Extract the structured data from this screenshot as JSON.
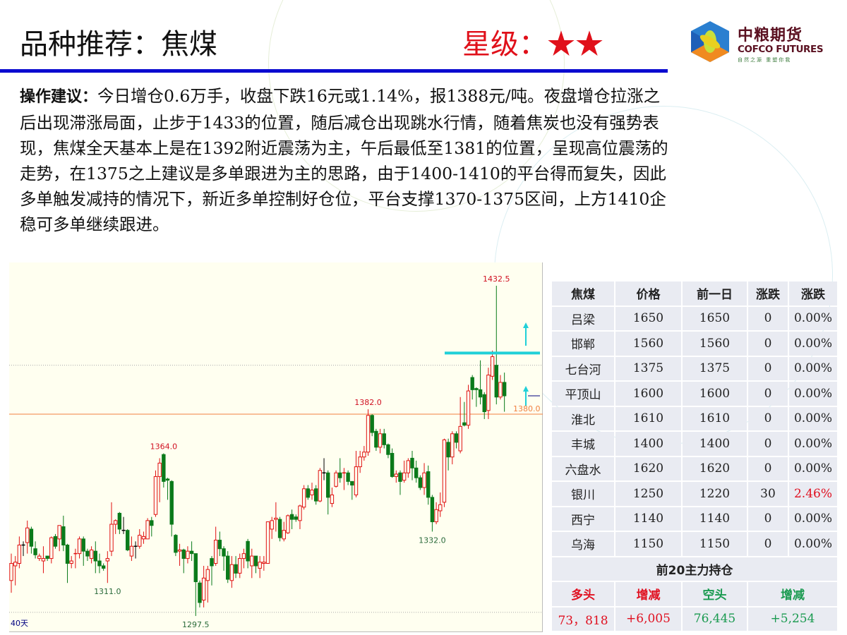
{
  "header": {
    "title": "品种推荐：焦煤",
    "rating_label": "星级：",
    "rating_stars": "★★",
    "rating_count": 2
  },
  "logo": {
    "cn": "中粮期货",
    "en": "COFCO FUTURES",
    "slogan": "自然之源 重塑你我"
  },
  "advice": {
    "label": "操作建议：",
    "lines": [
      "今日增仓0.6万手，收盘下跌16元或1.14%，报1388元/吨。夜盘增仓拉涨之",
      "后出现滞涨局面，止步于1433的位置，随后减仓出现跳水行情，随着焦炭也没有强势表",
      "现，焦煤全天基本上是在1392附近震荡为主，午后最低至1381的位置，呈现高位震荡的",
      "走势，在1375之上建议是多单跟进为主的思路，由于1400-1410的平台得而复失，因此",
      "多单触发减持的情况下，新近多单控制好仓位，平台支撑1370-1375区间，上方1410企",
      "稳可多单继续跟进。"
    ]
  },
  "chart_data": {
    "type": "candlestick",
    "period_label": "40天",
    "ylim": [
      1293,
      1445
    ],
    "colors": {
      "up": "#e01010",
      "down": "#0a7a1a",
      "bg": "#fffff0",
      "support": "#f08040",
      "resistance": "#20d0d8"
    },
    "candles": [
      [
        1312,
        1323,
        1307,
        1319
      ],
      [
        1318,
        1322,
        1310,
        1319.5
      ],
      [
        1319,
        1330,
        1317,
        1326.5
      ],
      [
        1326.5,
        1328,
        1322,
        1326.5
      ],
      [
        1327.5,
        1336.5,
        1323,
        1333.5
      ],
      [
        1333,
        1334,
        1323,
        1326
      ],
      [
        1325,
        1328,
        1321,
        1322.5
      ],
      [
        1321,
        1323,
        1320,
        1322
      ],
      [
        1320,
        1326,
        1315,
        1321
      ],
      [
        1322,
        1322,
        1320,
        1321
      ],
      [
        1321,
        1330,
        1319,
        1329.5
      ],
      [
        1330,
        1331,
        1325,
        1326
      ],
      [
        1329,
        1334.5,
        1324,
        1334.5
      ],
      [
        1334,
        1338.5,
        1324,
        1326.5
      ],
      [
        1326.5,
        1327,
        1311,
        1319
      ],
      [
        1319,
        1322,
        1317,
        1320
      ],
      [
        1323,
        1325,
        1317,
        1323
      ],
      [
        1323,
        1330,
        1321,
        1329
      ],
      [
        1329,
        1330,
        1318,
        1324
      ],
      [
        1324,
        1325,
        1320,
        1322
      ],
      [
        1321,
        1326,
        1319,
        1324.5
      ],
      [
        1324,
        1328,
        1315,
        1320
      ],
      [
        1320,
        1323,
        1315,
        1318
      ],
      [
        1318,
        1319,
        1316,
        1317
      ],
      [
        1320,
        1324,
        1311,
        1321
      ],
      [
        1324,
        1344,
        1322,
        1335
      ],
      [
        1335,
        1337,
        1331,
        1336.5
      ],
      [
        1339.5,
        1340,
        1331,
        1333
      ],
      [
        1332.5,
        1338,
        1331,
        1332.5
      ],
      [
        1332.5,
        1333,
        1324,
        1324.5
      ],
      [
        1322,
        1330,
        1320,
        1326
      ],
      [
        1326,
        1328,
        1321,
        1326
      ],
      [
        1326,
        1333,
        1325,
        1330.5
      ],
      [
        1329,
        1332,
        1327,
        1330
      ],
      [
        1329,
        1337.5,
        1329,
        1336.5
      ],
      [
        1336.5,
        1338,
        1330,
        1334.5
      ],
      [
        1339,
        1357,
        1338,
        1354.5
      ],
      [
        1354.5,
        1362,
        1344,
        1360
      ],
      [
        1363.5,
        1364,
        1350,
        1352.5
      ],
      [
        1353.5,
        1354,
        1345,
        1353
      ],
      [
        1352.5,
        1353,
        1330,
        1335
      ],
      [
        1330.5,
        1331,
        1322,
        1323.5
      ],
      [
        1324,
        1327,
        1318,
        1324.5
      ],
      [
        1324.5,
        1325,
        1315,
        1321
      ],
      [
        1321,
        1326,
        1319,
        1324
      ],
      [
        1324,
        1328,
        1320,
        1323
      ],
      [
        1323,
        1323,
        1297.5,
        1311.5
      ],
      [
        1311,
        1312,
        1301,
        1303
      ],
      [
        1304,
        1318,
        1301,
        1313
      ],
      [
        1312,
        1318,
        1303,
        1316.5
      ],
      [
        1321,
        1322,
        1310,
        1318
      ],
      [
        1319,
        1334,
        1318,
        1328.5
      ],
      [
        1328.5,
        1332,
        1322,
        1325
      ],
      [
        1325,
        1326,
        1316,
        1322
      ],
      [
        1322,
        1324,
        1311,
        1312.5
      ],
      [
        1312,
        1322,
        1309,
        1318.5
      ],
      [
        1318.5,
        1322,
        1313,
        1315
      ],
      [
        1315,
        1323,
        1313,
        1321
      ],
      [
        1321,
        1325,
        1317,
        1323
      ],
      [
        1328,
        1329,
        1317,
        1320
      ],
      [
        1318,
        1325,
        1313,
        1322
      ],
      [
        1322,
        1322,
        1315,
        1318
      ],
      [
        1317,
        1322,
        1313,
        1319.5
      ],
      [
        1319,
        1322,
        1316,
        1319.5
      ],
      [
        1319,
        1336,
        1319,
        1336
      ],
      [
        1333,
        1338,
        1329,
        1336.5
      ],
      [
        1337,
        1344,
        1332,
        1337.5
      ],
      [
        1337,
        1338,
        1328,
        1329.5
      ],
      [
        1329,
        1336,
        1328,
        1332.5
      ],
      [
        1331.5,
        1339,
        1331,
        1338.5
      ],
      [
        1339,
        1341,
        1333,
        1337
      ],
      [
        1338,
        1339,
        1336,
        1337
      ],
      [
        1336.5,
        1343,
        1333,
        1342.5
      ],
      [
        1342,
        1351,
        1341,
        1349.5
      ],
      [
        1349.5,
        1351,
        1345,
        1346
      ],
      [
        1347,
        1352,
        1345,
        1349
      ],
      [
        1349.5,
        1351,
        1343,
        1344.5
      ],
      [
        1344.5,
        1358,
        1344,
        1357
      ],
      [
        1356,
        1362,
        1353,
        1356
      ],
      [
        1356,
        1357,
        1339,
        1346
      ],
      [
        1343.5,
        1350,
        1342,
        1347
      ],
      [
        1350.5,
        1357,
        1350,
        1356
      ],
      [
        1356,
        1362,
        1352,
        1354
      ],
      [
        1356,
        1358,
        1349,
        1356
      ],
      [
        1356,
        1357,
        1351,
        1352.5
      ],
      [
        1352.5,
        1352.5,
        1345,
        1351
      ],
      [
        1347,
        1365,
        1346,
        1358.5
      ],
      [
        1358.5,
        1365,
        1356,
        1362.5
      ],
      [
        1362.5,
        1367,
        1361,
        1364.5
      ],
      [
        1364.5,
        1382,
        1363,
        1379.5
      ],
      [
        1379.5,
        1380,
        1371,
        1372.5
      ],
      [
        1373,
        1374,
        1365,
        1366.5
      ],
      [
        1366.5,
        1374,
        1364,
        1372
      ],
      [
        1372,
        1374,
        1366,
        1367.5
      ],
      [
        1367.5,
        1368,
        1362,
        1363.5
      ],
      [
        1364,
        1366,
        1354,
        1354.5
      ],
      [
        1354.5,
        1357,
        1352,
        1355.5
      ],
      [
        1356,
        1357,
        1347,
        1352.5
      ],
      [
        1353,
        1361,
        1352,
        1356
      ],
      [
        1356,
        1362,
        1354,
        1361
      ],
      [
        1362,
        1365,
        1353,
        1358
      ],
      [
        1358,
        1361,
        1352,
        1354
      ],
      [
        1354,
        1355,
        1349,
        1350
      ],
      [
        1350,
        1360,
        1347,
        1356
      ],
      [
        1356.5,
        1359,
        1343,
        1346
      ],
      [
        1346,
        1347,
        1332,
        1336
      ],
      [
        1336,
        1344,
        1335,
        1341
      ],
      [
        1340.5,
        1348,
        1338,
        1343
      ],
      [
        1344,
        1370,
        1342,
        1369.5
      ],
      [
        1368.5,
        1370,
        1357,
        1362.5
      ],
      [
        1362.5,
        1373,
        1359.5,
        1372
      ],
      [
        1372,
        1373,
        1366,
        1368.5
      ],
      [
        1365,
        1387,
        1364,
        1375
      ],
      [
        1376.5,
        1385,
        1375,
        1375.5
      ],
      [
        1375.5,
        1392,
        1374,
        1389.5
      ],
      [
        1395,
        1396,
        1386,
        1390
      ],
      [
        1390.5,
        1391,
        1383,
        1390
      ],
      [
        1390,
        1402,
        1384,
        1387
      ],
      [
        1388,
        1389,
        1378,
        1381
      ],
      [
        1381.5,
        1399,
        1378,
        1396
      ],
      [
        1395.5,
        1406,
        1394,
        1403.5
      ],
      [
        1400,
        1432.5,
        1384,
        1387
      ],
      [
        1387,
        1396,
        1386,
        1393
      ],
      [
        1393,
        1397,
        1381,
        1387.5
      ]
    ],
    "annotations": [
      {
        "text": "1432.5",
        "index": 121,
        "price": 1432.5,
        "pos": "above",
        "kind": "high"
      },
      {
        "text": "1382.0",
        "index": 89,
        "price": 1382,
        "pos": "above",
        "kind": "high"
      },
      {
        "text": "1364.0",
        "index": 38,
        "price": 1364,
        "pos": "above",
        "kind": "high"
      },
      {
        "text": "1311.0",
        "index": 24,
        "price": 1311,
        "pos": "below",
        "kind": "low"
      },
      {
        "text": "1297.5",
        "index": 46,
        "price": 1297.5,
        "pos": "below",
        "kind": "low"
      },
      {
        "text": "1332.0",
        "index": 105,
        "price": 1332,
        "pos": "below",
        "kind": "low"
      }
    ],
    "support_line": {
      "price": 1380,
      "label": "1380.0"
    },
    "resistance_line": {
      "price": 1405
    },
    "dotted_lines": [
      1400,
      1299
    ]
  },
  "table": {
    "headers": [
      "焦煤",
      "价格",
      "前一日",
      "涨跌",
      "涨跌"
    ],
    "rows": [
      [
        "吕梁",
        "1650",
        "1650",
        "0",
        "0.00%"
      ],
      [
        "邯郸",
        "1560",
        "1560",
        "0",
        "0.00%"
      ],
      [
        "七台河",
        "1375",
        "1375",
        "0",
        "0.00%"
      ],
      [
        "平顶山",
        "1600",
        "1600",
        "0",
        "0.00%"
      ],
      [
        "淮北",
        "1610",
        "1610",
        "0",
        "0.00%"
      ],
      [
        "丰城",
        "1400",
        "1400",
        "0",
        "0.00%"
      ],
      [
        "六盘水",
        "1620",
        "1620",
        "0",
        "0.00%"
      ],
      [
        "银川",
        "1250",
        "1220",
        "30",
        "2.46%"
      ],
      [
        "西宁",
        "1140",
        "1140",
        "0",
        "0.00%"
      ],
      [
        "乌海",
        "1150",
        "1150",
        "0",
        "0.00%"
      ]
    ],
    "positions_title": "前20主力持仓",
    "positions_headers": [
      "多头",
      "增减",
      "空头",
      "增减"
    ],
    "positions_values": [
      "73，818",
      "+6,005",
      "76,445",
      "+5,254"
    ]
  }
}
